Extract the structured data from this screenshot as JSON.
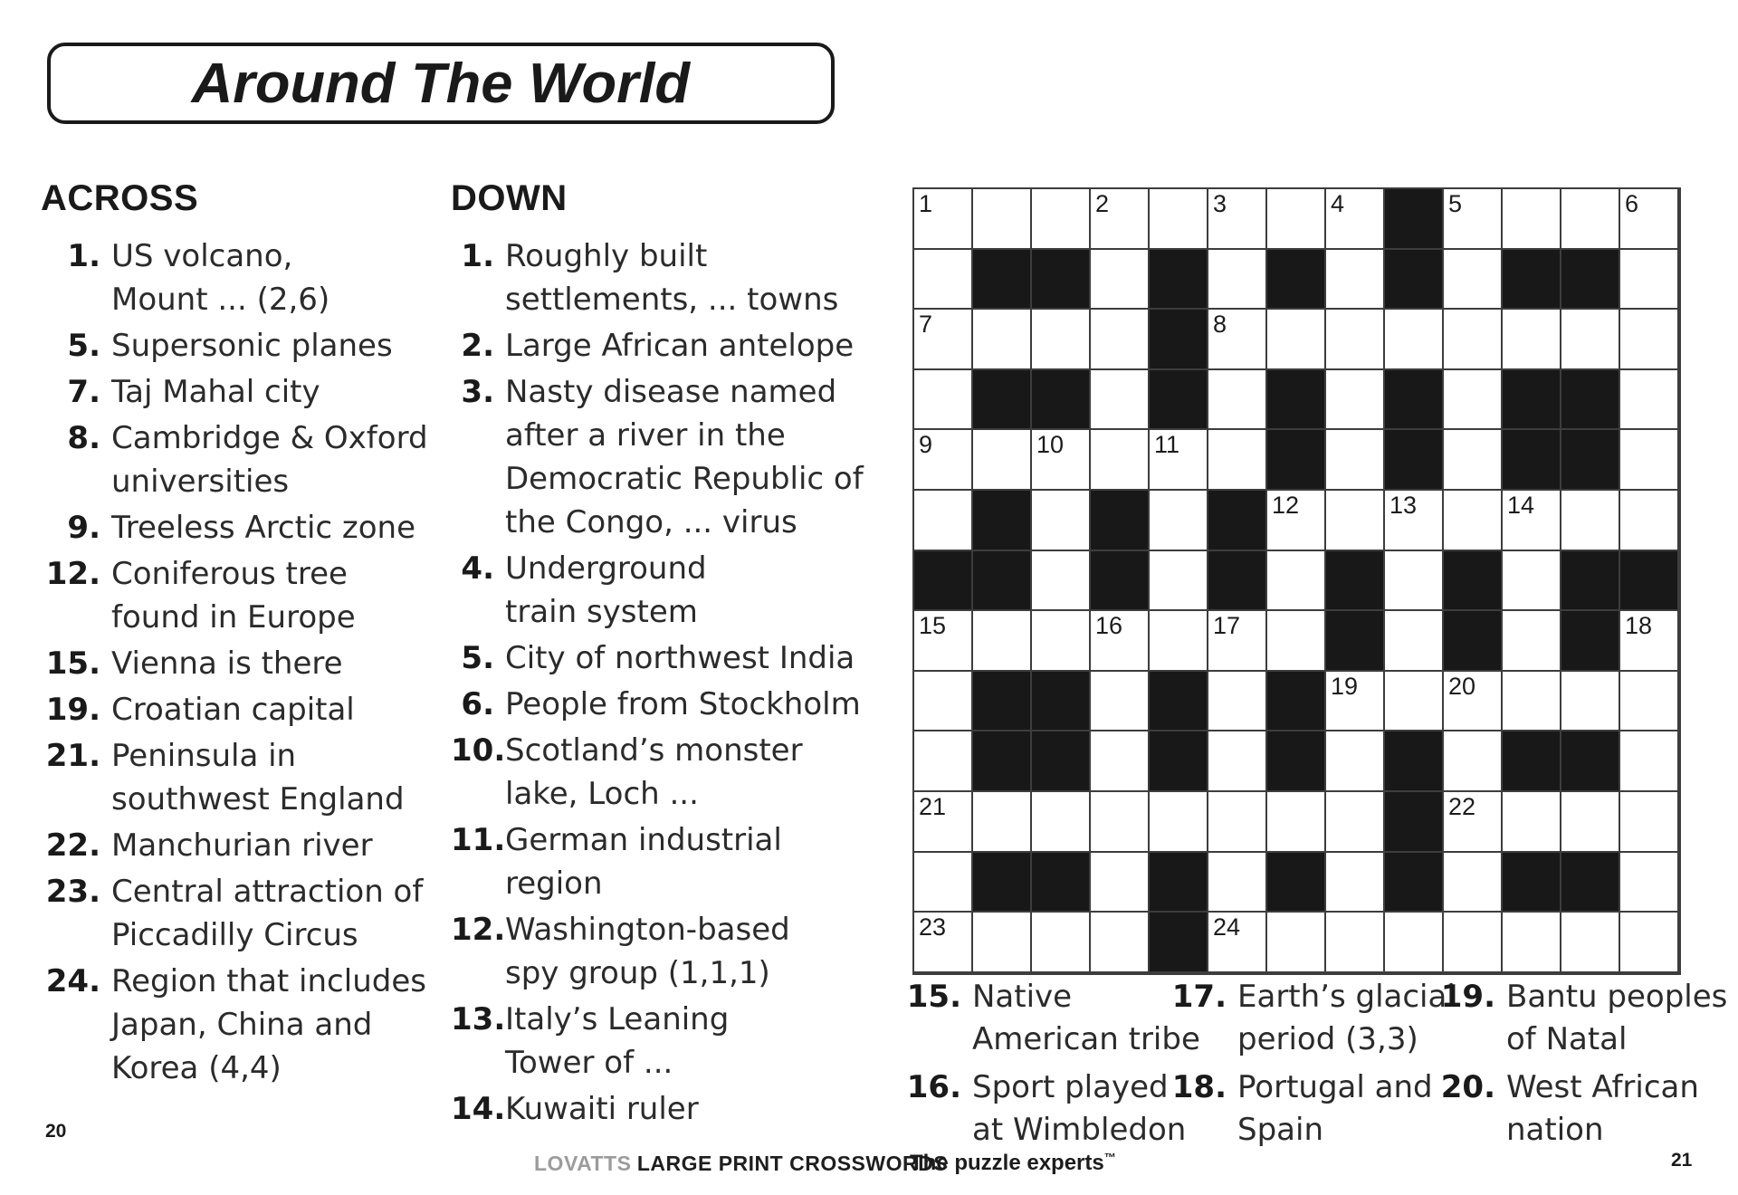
{
  "title": "Around The World",
  "across": {
    "header": "ACROSS",
    "clues": [
      {
        "num": "1.",
        "lines": [
          "US volcano,",
          "Mount ... (2,6)"
        ]
      },
      {
        "num": "5.",
        "lines": [
          "Supersonic planes"
        ]
      },
      {
        "num": "7.",
        "lines": [
          "Taj Mahal city"
        ]
      },
      {
        "num": "8.",
        "lines": [
          "Cambridge & Oxford",
          "universities"
        ]
      },
      {
        "num": "9.",
        "lines": [
          "Treeless Arctic zone"
        ]
      },
      {
        "num": "12.",
        "lines": [
          "Coniferous tree",
          "found in Europe"
        ]
      },
      {
        "num": "15.",
        "lines": [
          "Vienna is there"
        ]
      },
      {
        "num": "19.",
        "lines": [
          "Croatian capital"
        ]
      },
      {
        "num": "21.",
        "lines": [
          "Peninsula in",
          "southwest England"
        ]
      },
      {
        "num": "22.",
        "lines": [
          "Manchurian river"
        ]
      },
      {
        "num": "23.",
        "lines": [
          "Central attraction of",
          "Piccadilly Circus"
        ]
      },
      {
        "num": "24.",
        "lines": [
          "Region that includes",
          "Japan, China and",
          "Korea (4,4)"
        ]
      }
    ]
  },
  "down": {
    "header": "DOWN",
    "clues": [
      {
        "num": "1.",
        "lines": [
          "Roughly built",
          "settlements, ... towns"
        ]
      },
      {
        "num": "2.",
        "lines": [
          "Large African antelope"
        ]
      },
      {
        "num": "3.",
        "lines": [
          "Nasty disease named",
          "after a river in the",
          "Democratic Republic of",
          "the Congo, ... virus"
        ]
      },
      {
        "num": "4.",
        "lines": [
          "Underground",
          "train system"
        ]
      },
      {
        "num": "5.",
        "lines": [
          "City of northwest India"
        ]
      },
      {
        "num": "6.",
        "lines": [
          "People from Stockholm"
        ]
      },
      {
        "num": "10.",
        "lines": [
          "Scotland’s monster",
          "lake, Loch ..."
        ]
      },
      {
        "num": "11.",
        "lines": [
          "German industrial",
          "region"
        ]
      },
      {
        "num": "12.",
        "lines": [
          "Washington-based",
          "spy group (1,1,1)"
        ]
      },
      {
        "num": "13.",
        "lines": [
          "Italy’s Leaning",
          "Tower of ..."
        ]
      },
      {
        "num": "14.",
        "lines": [
          "Kuwaiti ruler"
        ]
      }
    ]
  },
  "bottom_clues": {
    "col1": [
      {
        "num": "15.",
        "lines": [
          "Native",
          "American tribe"
        ]
      },
      {
        "num": "16.",
        "lines": [
          "Sport played",
          "at Wimbledon"
        ]
      }
    ],
    "col2": [
      {
        "num": "17.",
        "lines": [
          "Earth’s glacial",
          "period (3,3)"
        ]
      },
      {
        "num": "18.",
        "lines": [
          "Portugal and",
          "Spain"
        ]
      }
    ],
    "col3": [
      {
        "num": "19.",
        "lines": [
          "Bantu peoples",
          "of Natal"
        ]
      },
      {
        "num": "20.",
        "lines": [
          "West African",
          "nation"
        ]
      }
    ]
  },
  "grid": {
    "rows": 13,
    "cols": 13,
    "black_pattern": [
      "........#....",
      ".##.#.#.#.##.",
      "....#........",
      ".##.#.#.#.##.",
      "......#.#.##.",
      ".#.#.#.......",
      "##.#.#.#.#.##",
      ".......#.#.#.",
      ".##.#.#......",
      ".##.#.#.#.##.",
      "........#....",
      ".##.#.#.#.##.",
      "....#........"
    ],
    "numbers": [
      {
        "r": 1,
        "c": 1,
        "n": "1"
      },
      {
        "r": 1,
        "c": 4,
        "n": "2"
      },
      {
        "r": 1,
        "c": 6,
        "n": "3"
      },
      {
        "r": 1,
        "c": 8,
        "n": "4"
      },
      {
        "r": 1,
        "c": 10,
        "n": "5"
      },
      {
        "r": 1,
        "c": 13,
        "n": "6"
      },
      {
        "r": 3,
        "c": 1,
        "n": "7"
      },
      {
        "r": 3,
        "c": 6,
        "n": "8"
      },
      {
        "r": 5,
        "c": 1,
        "n": "9"
      },
      {
        "r": 5,
        "c": 3,
        "n": "10"
      },
      {
        "r": 5,
        "c": 5,
        "n": "11"
      },
      {
        "r": 6,
        "c": 7,
        "n": "12"
      },
      {
        "r": 6,
        "c": 9,
        "n": "13"
      },
      {
        "r": 6,
        "c": 11,
        "n": "14"
      },
      {
        "r": 8,
        "c": 1,
        "n": "15"
      },
      {
        "r": 8,
        "c": 4,
        "n": "16"
      },
      {
        "r": 8,
        "c": 6,
        "n": "17"
      },
      {
        "r": 8,
        "c": 13,
        "n": "18"
      },
      {
        "r": 9,
        "c": 8,
        "n": "19"
      },
      {
        "r": 9,
        "c": 10,
        "n": "20"
      },
      {
        "r": 11,
        "c": 1,
        "n": "21"
      },
      {
        "r": 11,
        "c": 10,
        "n": "22"
      },
      {
        "r": 13,
        "c": 1,
        "n": "23"
      },
      {
        "r": 13,
        "c": 6,
        "n": "24"
      }
    ]
  },
  "footer": {
    "page_left": "20",
    "page_right": "21",
    "brand_light": "LOVATTS",
    "brand_bold": "LARGE PRINT CROSSWORDS",
    "tagline": "The puzzle experts",
    "tagline_tm": "™"
  },
  "colors": {
    "ink": "#1a1a1a",
    "grid_line": "#3d3d3d",
    "black_cell": "#181818",
    "brand_gray": "#9c9c9c"
  }
}
